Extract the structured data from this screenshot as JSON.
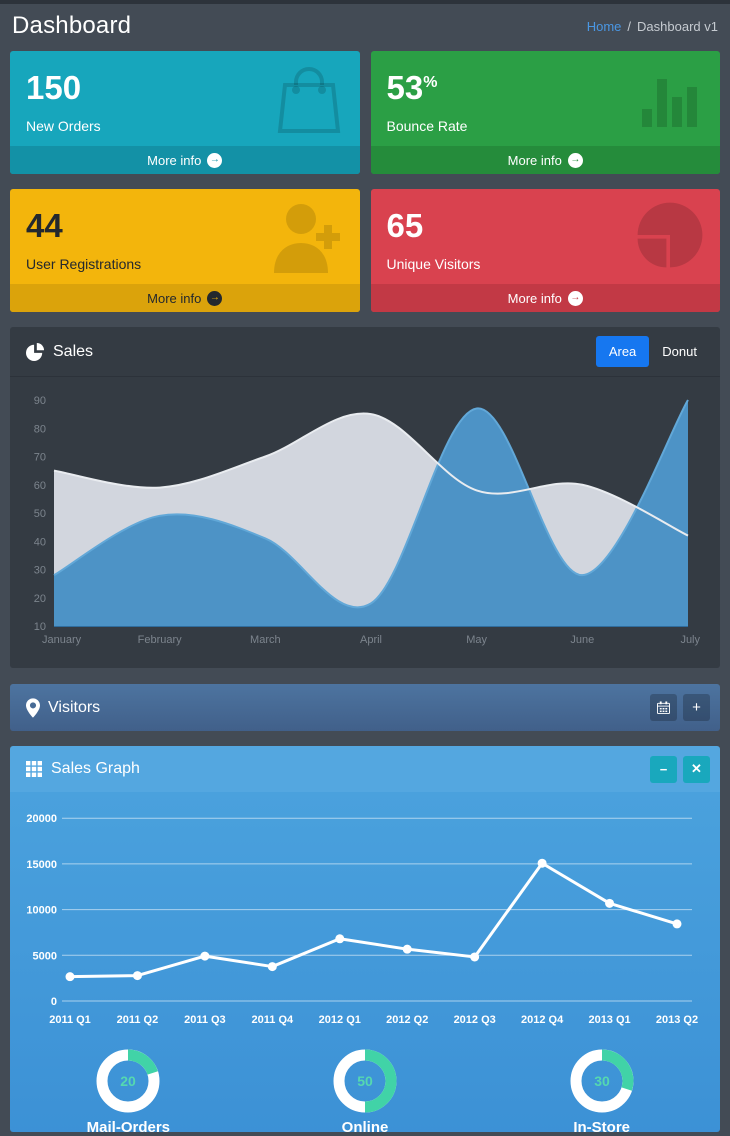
{
  "page": {
    "title": "Dashboard",
    "breadcrumb": {
      "home": "Home",
      "separator": "/",
      "current": "Dashboard v1"
    }
  },
  "colors": {
    "page_bg": "#434b55",
    "panel_dark_bg": "#343b43",
    "teal_box": "#17a6bc",
    "green_box": "#2b9f45",
    "yellow_box": "#f3b50c",
    "red_box": "#d9424f",
    "active_button_blue": "#1677f0",
    "visitors_bar_blue": "#486892",
    "sales_graph_header": "#54a7e0",
    "gauge_arc": "#41d3a7",
    "breadcrumb_link": "#4a97e4"
  },
  "small_boxes": [
    {
      "value": "150",
      "sup": "",
      "label": "New Orders",
      "icon": "bag-icon",
      "more_label": "More info"
    },
    {
      "value": "53",
      "sup": "%",
      "label": "Bounce Rate",
      "icon": "stats-bars-icon",
      "more_label": "More info"
    },
    {
      "value": "44",
      "sup": "",
      "label": "User Registrations",
      "icon": "person-add-icon",
      "more_label": "More info"
    },
    {
      "value": "65",
      "sup": "",
      "label": "Unique Visitors",
      "icon": "pie-chart-icon",
      "more_label": "More info"
    }
  ],
  "sales_panel": {
    "title": "Sales",
    "area_label": "Area",
    "donut_label": "Donut"
  },
  "visitors_panel": {
    "title": "Visitors"
  },
  "sales_graph_panel": {
    "title": "Sales Graph"
  },
  "chart_data": [
    {
      "type": "area",
      "title": "Sales",
      "x": [
        "January",
        "February",
        "March",
        "April",
        "May",
        "June",
        "July"
      ],
      "series": [
        {
          "name": "gray-series",
          "fill": "#d2d6de",
          "line": "#e9ecf0",
          "values": [
            65,
            59,
            70,
            85,
            58,
            60,
            42
          ]
        },
        {
          "name": "blue-series",
          "fill": "#4d93c6",
          "line": "#62a8d8",
          "values": [
            28,
            49,
            41,
            18,
            87,
            28,
            90
          ]
        }
      ],
      "ylim": [
        10,
        90
      ],
      "yticks": [
        10,
        20,
        30,
        40,
        50,
        60,
        70,
        80,
        90
      ],
      "grid": false,
      "tick_color": "#7c848d",
      "legend_position": "none"
    },
    {
      "type": "line",
      "title": "Sales Graph",
      "x": [
        "2011 Q1",
        "2011 Q2",
        "2011 Q3",
        "2011 Q4",
        "2012 Q1",
        "2012 Q2",
        "2012 Q3",
        "2012 Q4",
        "2013 Q1",
        "2013 Q2"
      ],
      "values": [
        2666,
        2778,
        4912,
        3767,
        6810,
        5670,
        4820,
        15073,
        10687,
        8432
      ],
      "ylim": [
        0,
        21000
      ],
      "yticks": [
        0,
        5000,
        10000,
        15000,
        20000
      ],
      "line_color": "#ffffff",
      "point_color": "#ffffff",
      "grid": true,
      "grid_color": "rgba(255,255,255,0.55)",
      "tick_color": "#ffffff"
    },
    {
      "type": "donut-gauges",
      "items": [
        {
          "label": "Mail-Orders",
          "value": 20
        },
        {
          "label": "Online",
          "value": 50
        },
        {
          "label": "In-Store",
          "value": 30
        }
      ],
      "arc_color": "#41d3a7",
      "track_color": "#ffffff",
      "value_color": "#55d8b0"
    }
  ]
}
